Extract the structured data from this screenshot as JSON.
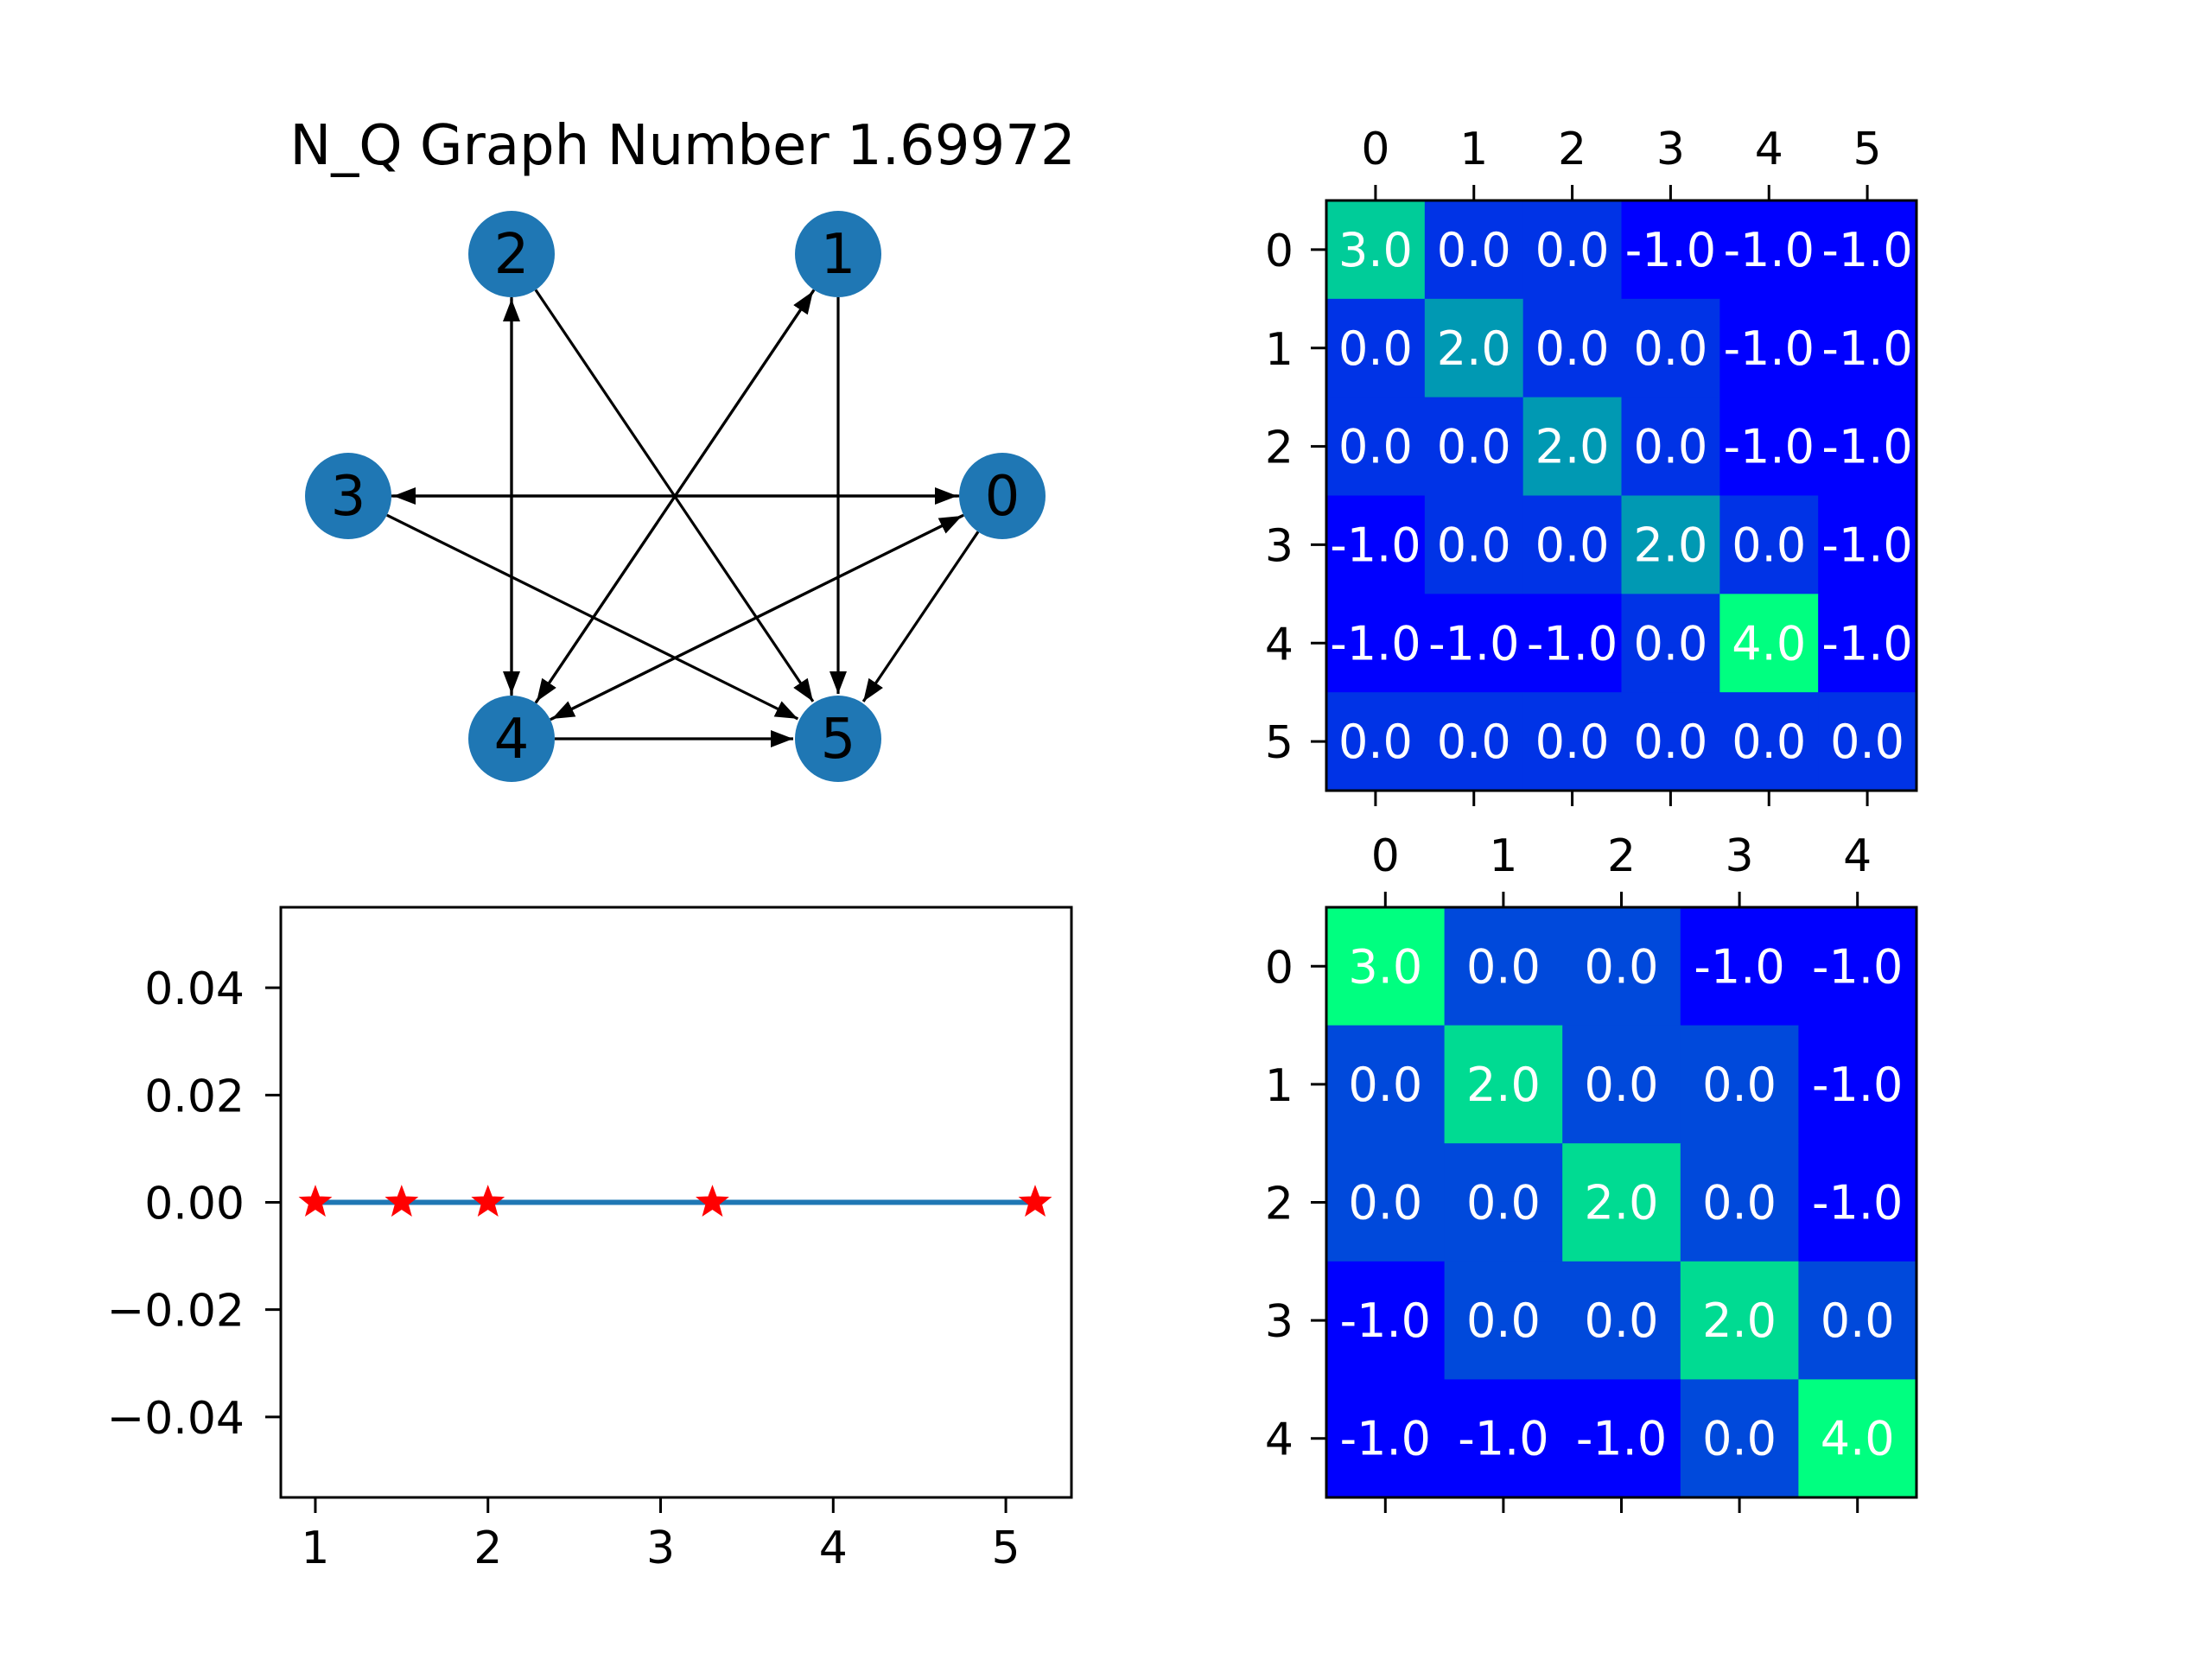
{
  "figure": {
    "background": "#ffffff",
    "node_color": "#1f77b4",
    "edge_color": "#000000",
    "line_color": "#1f77b4",
    "marker_color": "#ff0000",
    "colormap": "winter"
  },
  "chart_data": [
    {
      "type": "network",
      "title": "N_Q Graph Number 1.69972",
      "nodes": [
        {
          "id": "0",
          "label": "0"
        },
        {
          "id": "1",
          "label": "1"
        },
        {
          "id": "2",
          "label": "2"
        },
        {
          "id": "3",
          "label": "3"
        },
        {
          "id": "4",
          "label": "4"
        },
        {
          "id": "5",
          "label": "5"
        }
      ],
      "edges": [
        {
          "source": "0",
          "target": "3"
        },
        {
          "source": "3",
          "target": "0"
        },
        {
          "source": "0",
          "target": "4"
        },
        {
          "source": "4",
          "target": "0"
        },
        {
          "source": "0",
          "target": "5"
        },
        {
          "source": "1",
          "target": "4"
        },
        {
          "source": "4",
          "target": "1"
        },
        {
          "source": "1",
          "target": "5"
        },
        {
          "source": "2",
          "target": "4"
        },
        {
          "source": "4",
          "target": "2"
        },
        {
          "source": "2",
          "target": "5"
        },
        {
          "source": "3",
          "target": "5"
        },
        {
          "source": "4",
          "target": "5"
        }
      ]
    },
    {
      "type": "heatmap",
      "x_tick_labels": [
        "0",
        "1",
        "2",
        "3",
        "4",
        "5"
      ],
      "y_tick_labels": [
        "0",
        "1",
        "2",
        "3",
        "4",
        "5"
      ],
      "cell_labels": [
        [
          "3.0",
          "0.0",
          "0.0",
          "-1.0",
          "-1.0",
          "-1.0"
        ],
        [
          "0.0",
          "2.0",
          "0.0",
          "0.0",
          "-1.0",
          "-1.0"
        ],
        [
          "0.0",
          "0.0",
          "2.0",
          "0.0",
          "-1.0",
          "-1.0"
        ],
        [
          "-1.0",
          "0.0",
          "0.0",
          "2.0",
          "0.0",
          "-1.0"
        ],
        [
          "-1.0",
          "-1.0",
          "-1.0",
          "0.0",
          "4.0",
          "-1.0"
        ],
        [
          "0.0",
          "0.0",
          "0.0",
          "0.0",
          "0.0",
          "0.0"
        ]
      ],
      "values": [
        [
          3,
          0,
          0,
          -1,
          -1,
          -1
        ],
        [
          0,
          2,
          0,
          0,
          -1,
          -1
        ],
        [
          0,
          0,
          2,
          0,
          -1,
          -1
        ],
        [
          -1,
          0,
          0,
          2,
          0,
          -1
        ],
        [
          -1,
          -1,
          -1,
          0,
          4,
          -1
        ],
        [
          0,
          0,
          0,
          0,
          0,
          0
        ]
      ],
      "vmin": -1,
      "vmax": 4
    },
    {
      "type": "line",
      "x": [
        1,
        1.5,
        2,
        3.3,
        5.17
      ],
      "y": [
        0,
        0,
        0,
        0,
        0
      ],
      "xlim": [
        0.8,
        5.38
      ],
      "ylim": [
        -0.055,
        0.055
      ],
      "x_ticks": [
        1,
        2,
        3,
        4,
        5
      ],
      "x_tick_labels": [
        "1",
        "2",
        "3",
        "4",
        "5"
      ],
      "y_ticks": [
        0.04,
        0.02,
        0,
        -0.02,
        -0.04
      ],
      "y_tick_labels": [
        "0.04",
        "0.02",
        "0.00",
        "−0.02",
        "−0.04"
      ],
      "marker": "star"
    },
    {
      "type": "heatmap",
      "x_tick_labels": [
        "0",
        "1",
        "2",
        "3",
        "4"
      ],
      "y_tick_labels": [
        "0",
        "1",
        "2",
        "3",
        "4"
      ],
      "cell_labels": [
        [
          "3.0",
          "0.0",
          "0.0",
          "-1.0",
          "-1.0"
        ],
        [
          "0.0",
          "2.0",
          "0.0",
          "0.0",
          "-1.0"
        ],
        [
          "0.0",
          "0.0",
          "2.0",
          "0.0",
          "-1.0"
        ],
        [
          "-1.0",
          "0.0",
          "0.0",
          "2.0",
          "0.0"
        ],
        [
          "-1.0",
          "-1.0",
          "-1.0",
          "0.0",
          "4.0"
        ]
      ],
      "values": [
        [
          3,
          0,
          0,
          -1,
          -1
        ],
        [
          0,
          2,
          0,
          0,
          -1
        ],
        [
          0,
          0,
          2,
          0,
          -1
        ],
        [
          -1,
          0,
          0,
          2,
          0
        ],
        [
          -1,
          -1,
          -1,
          0,
          4
        ]
      ],
      "vmin": -1,
      "vmax": 2.5
    }
  ]
}
